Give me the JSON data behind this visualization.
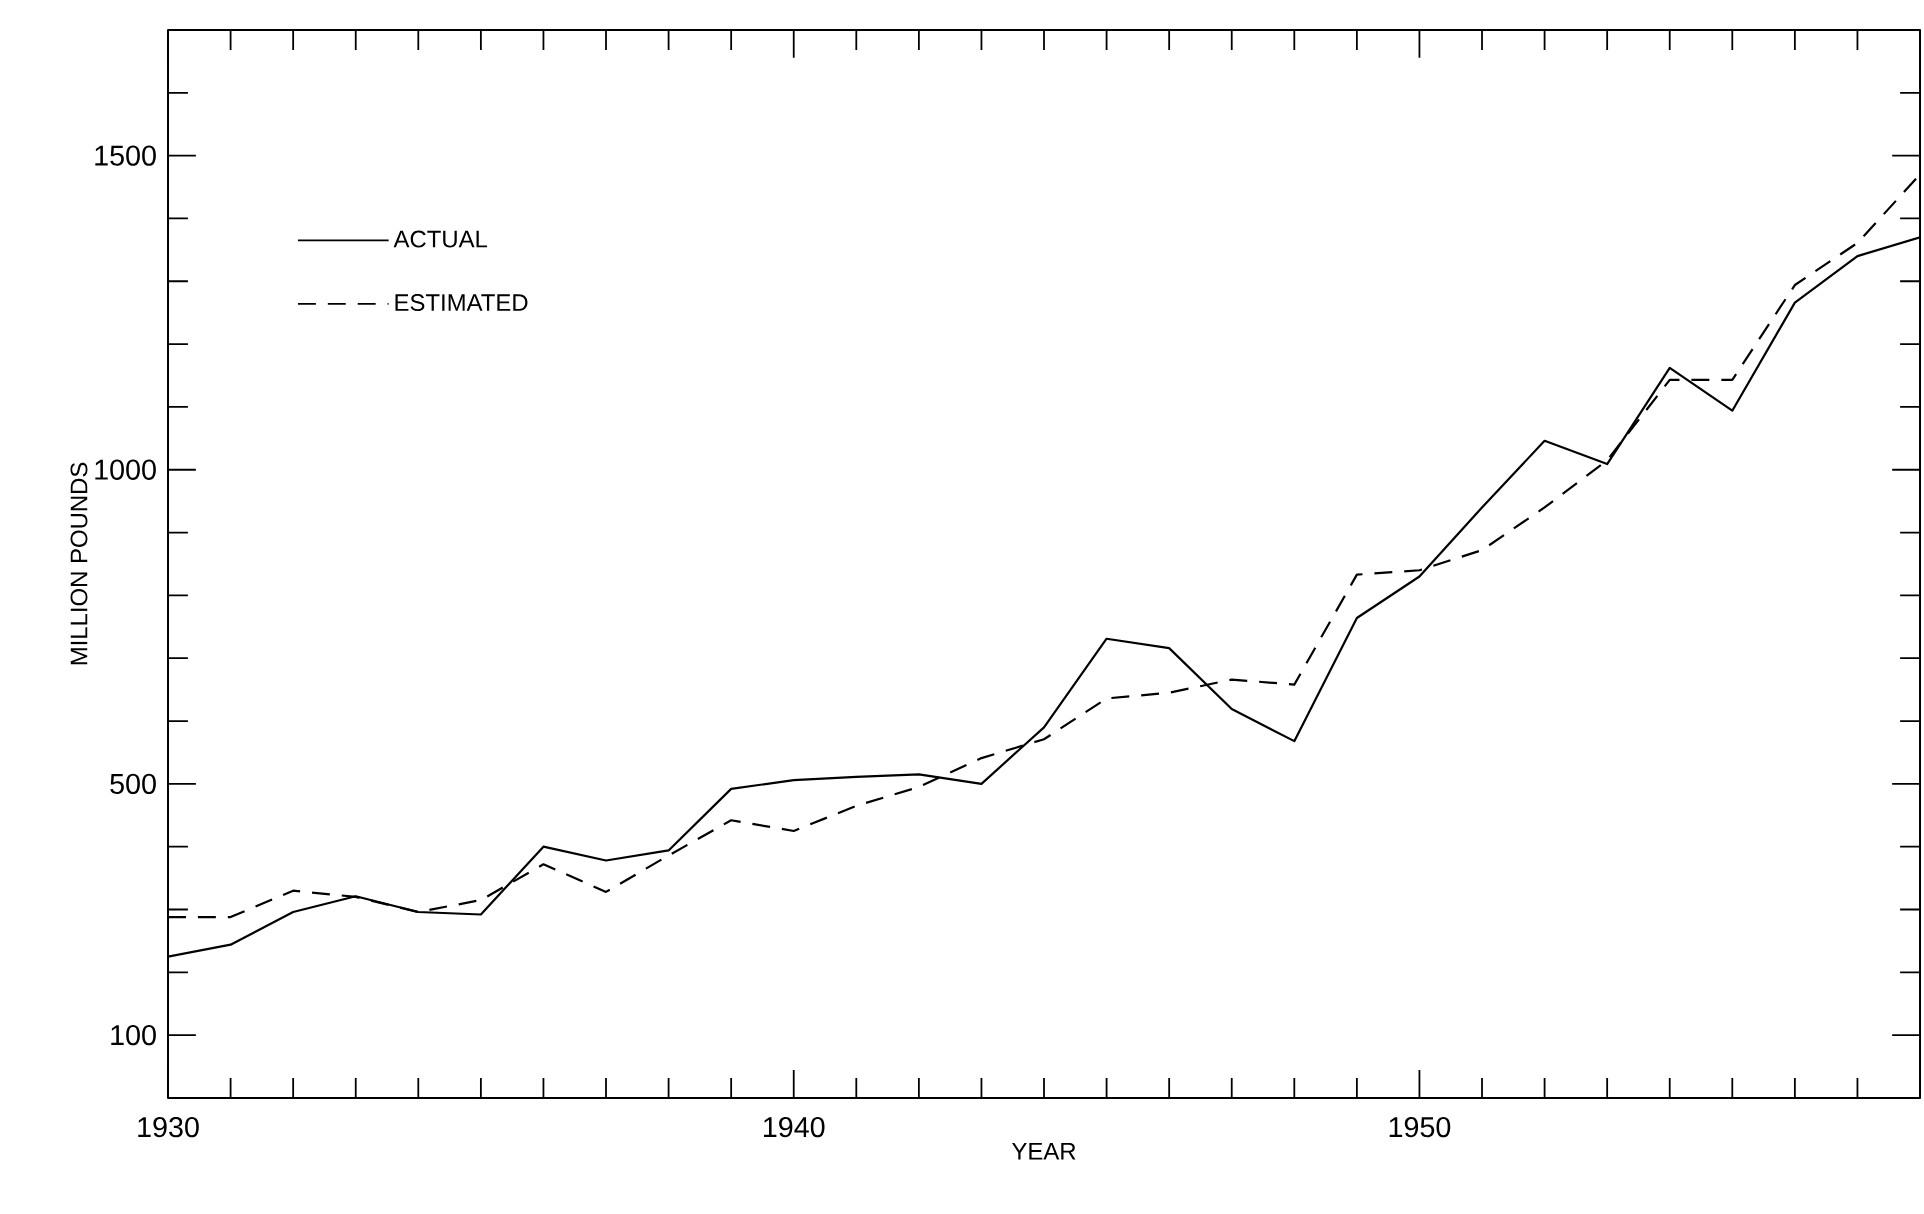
{
  "chart_data": {
    "type": "line",
    "xlabel": "YEAR",
    "ylabel": "MILLION POUNDS",
    "x": [
      1930,
      1931,
      1932,
      1933,
      1934,
      1935,
      1936,
      1937,
      1938,
      1939,
      1940,
      1941,
      1942,
      1943,
      1944,
      1945,
      1946,
      1947,
      1948,
      1949,
      1950,
      1951,
      1952,
      1953,
      1954,
      1955,
      1956,
      1957,
      1958
    ],
    "series": [
      {
        "name": "ACTUAL",
        "color": "#000000",
        "line_style": "solid",
        "values": [
          225,
          244,
          296,
          321,
          296,
          292,
          400,
          378,
          394,
          492,
          506,
          511,
          515,
          500,
          590,
          731,
          716,
          619,
          568,
          764,
          830,
          940,
          1046,
          1009,
          1162,
          1094,
          1266,
          1340,
          1370
        ]
      },
      {
        "name": "ESTIMATED",
        "color": "#000000",
        "line_style": "dashed",
        "values": [
          288,
          288,
          330,
          320,
          296,
          315,
          372,
          328,
          386,
          442,
          425,
          465,
          495,
          541,
          571,
          636,
          645,
          666,
          658,
          833,
          840,
          872,
          940,
          1015,
          1143,
          1143,
          1294,
          1361,
          1470
        ]
      }
    ],
    "xlim": [
      1930,
      1958
    ],
    "ylim": [
      0,
      1700
    ],
    "xticks": [
      1930,
      {
        "value": 1931,
        "label": null
      },
      {
        "value": 1932,
        "label": null
      },
      {
        "value": 1933,
        "label": null
      },
      {
        "value": 1934,
        "label": null
      },
      {
        "value": 1935,
        "label": null
      },
      {
        "value": 1936,
        "label": null
      },
      {
        "value": 1937,
        "label": null
      },
      {
        "value": 1938,
        "label": null
      },
      {
        "value": 1939,
        "label": null
      },
      1940,
      {
        "value": 1941,
        "label": null
      },
      {
        "value": 1942,
        "label": null
      },
      {
        "value": 1943,
        "label": null
      },
      {
        "value": 1944,
        "label": null
      },
      {
        "value": 1945,
        "label": null
      },
      {
        "value": 1946,
        "label": null
      },
      {
        "value": 1947,
        "label": null
      },
      {
        "value": 1948,
        "label": null
      },
      {
        "value": 1949,
        "label": null
      },
      1950,
      {
        "value": 1951,
        "label": null
      },
      {
        "value": 1952,
        "label": null
      },
      {
        "value": 1953,
        "label": null
      },
      {
        "value": 1954,
        "label": null
      },
      {
        "value": 1955,
        "label": null
      },
      {
        "value": 1956,
        "label": null
      },
      {
        "value": 1957,
        "label": null
      }
    ],
    "yticks": [
      100,
      {
        "value": 200,
        "label": null
      },
      {
        "value": 300,
        "label": null
      },
      {
        "value": 400,
        "label": null
      },
      500,
      {
        "value": 600,
        "label": null
      },
      {
        "value": 700,
        "label": null
      },
      {
        "value": 800,
        "label": null
      },
      {
        "value": 900,
        "label": null
      },
      1000,
      {
        "value": 1100,
        "label": null
      },
      {
        "value": 1200,
        "label": null
      },
      {
        "value": 1300,
        "label": null
      },
      {
        "value": 1400,
        "label": null
      },
      1500,
      {
        "value": 1600,
        "label": null
      }
    ],
    "legend": "top left"
  }
}
